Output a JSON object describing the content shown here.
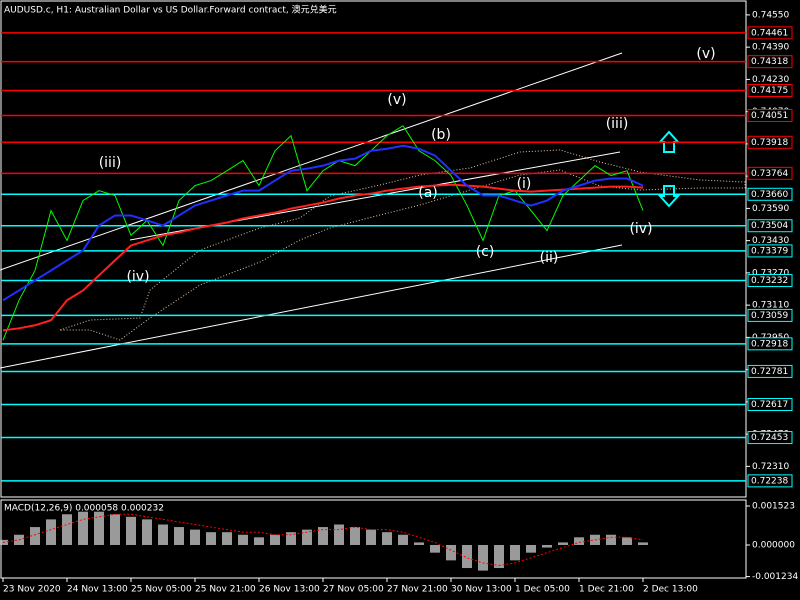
{
  "chart_data": [
    {
      "type": "line",
      "title": "AUDUSD.c, H1:  Australian Dollar vs US Dollar.Forward contract, 澳元兑美元",
      "categories": [
        "23 Nov 2020",
        null,
        null,
        null,
        "24 Nov 13:00",
        null,
        null,
        null,
        "25 Nov 05:00",
        null,
        null,
        null,
        "25 Nov 21:00",
        null,
        null,
        null,
        "26 Nov 13:00",
        null,
        null,
        null,
        "27 Nov 05:00",
        null,
        null,
        null,
        "27 Nov 21:00",
        null,
        null,
        null,
        "30 Nov 13:00",
        null,
        null,
        null,
        "1 Dec 05:00",
        null,
        null,
        null,
        "1 Dec 21:00",
        null,
        null,
        null,
        "2 Dec 13:00"
      ],
      "series": [
        {
          "color": "#00ff00",
          "values": [
            0.72936,
            0.73134,
            0.73282,
            0.73579,
            0.73431,
            0.73629,
            0.73678,
            0.73654,
            0.73456,
            0.7353,
            0.73406,
            0.73629,
            0.73703,
            0.73728,
            0.73777,
            0.73827,
            0.73703,
            0.73876,
            0.73951,
            0.73678,
            0.73777,
            0.73827,
            0.73802,
            0.73876,
            0.73951,
            0.74,
            0.73876,
            0.73827,
            0.73753,
            0.73604,
            0.73431,
            0.73654,
            0.73678,
            0.73579,
            0.7348,
            0.73654,
            0.73728,
            0.73802,
            0.73753,
            0.73777,
            0.73579
          ]
        },
        {
          "color": "#ff2020",
          "values": [
            0.72985,
            0.72995,
            0.7301,
            0.73035,
            0.73134,
            0.73183,
            0.73258,
            0.73332,
            0.73406,
            0.73431,
            0.73456,
            0.7347,
            0.7349,
            0.73505,
            0.7352,
            0.7354,
            0.73555,
            0.73569,
            0.73589,
            0.73604,
            0.73619,
            0.73639,
            0.73654,
            0.73663,
            0.73678,
            0.73688,
            0.73698,
            0.73703,
            0.73708,
            0.73703,
            0.73698,
            0.73688,
            0.73678,
            0.73673,
            0.73678,
            0.73683,
            0.73688,
            0.73693,
            0.73698,
            0.73698,
            0.73693
          ]
        },
        {
          "color": "#2030ff",
          "values": [
            0.73134,
            0.73183,
            0.73233,
            0.73282,
            0.73332,
            0.73381,
            0.73505,
            0.73555,
            0.73555,
            0.7353,
            0.73505,
            0.73555,
            0.73604,
            0.73629,
            0.73654,
            0.73678,
            0.73678,
            0.73728,
            0.73777,
            0.73787,
            0.73802,
            0.73827,
            0.73837,
            0.73876,
            0.73886,
            0.73901,
            0.73886,
            0.73852,
            0.73777,
            0.73703,
            0.73654,
            0.73654,
            0.73629,
            0.73604,
            0.73629,
            0.73678,
            0.73703,
            0.73728,
            0.73738,
            0.73738,
            0.73703
          ]
        }
      ],
      "ylim": [
        0.72158,
        0.74619
      ],
      "yticks": [
        {
          "value": 0.7455,
          "label": "0.74550"
        },
        {
          "value": 0.7439,
          "label": "0.74390"
        },
        {
          "value": 0.7423,
          "label": "0.74230"
        },
        {
          "value": 0.7407,
          "label": "0.74070"
        },
        {
          "value": 0.7391,
          "label": "0.73910"
        },
        {
          "value": 0.7375,
          "label": "0.73750"
        },
        {
          "value": 0.7359,
          "label": "0.73590"
        },
        {
          "value": 0.7343,
          "label": "0.73430"
        },
        {
          "value": 0.7327,
          "label": "0.73270"
        },
        {
          "value": 0.7311,
          "label": "0.73110"
        },
        {
          "value": 0.7295,
          "label": "0.72950"
        },
        {
          "value": 0.7279,
          "label": "0.72790"
        },
        {
          "value": 0.7263,
          "label": "0.72630"
        },
        {
          "value": 0.7247,
          "label": "0.72470"
        },
        {
          "value": 0.7231,
          "label": "0.72310"
        }
      ],
      "levels": [
        {
          "value": 0.74461,
          "label": "0.74461",
          "color": "#ff0000"
        },
        {
          "value": 0.74318,
          "label": "0.74318",
          "color": "#ff0000"
        },
        {
          "value": 0.74175,
          "label": "0.74175",
          "color": "#ff0000"
        },
        {
          "value": 0.74051,
          "label": "0.74051",
          "color": "#ff0000"
        },
        {
          "value": 0.73918,
          "label": "0.73918",
          "color": "#ff0000"
        },
        {
          "value": 0.73764,
          "label": "0.73764",
          "color": "#ff0000"
        },
        {
          "value": 0.7366,
          "label": "0.73660",
          "color": "#00ffff"
        },
        {
          "value": 0.73504,
          "label": "0.73504",
          "color": "#00ffff"
        },
        {
          "value": 0.73379,
          "label": "0.73379",
          "color": "#00ffff"
        },
        {
          "value": 0.73232,
          "label": "0.73232",
          "color": "#00ffff"
        },
        {
          "value": 0.73059,
          "label": "0.73059",
          "color": "#00ffff"
        },
        {
          "value": 0.72918,
          "label": "0.72918",
          "color": "#00ffff"
        },
        {
          "value": 0.72781,
          "label": "0.72781",
          "color": "#00ffff"
        },
        {
          "value": 0.72617,
          "label": "0.72617",
          "color": "#00ffff"
        },
        {
          "value": 0.72453,
          "label": "0.72453",
          "color": "#00ffff"
        },
        {
          "value": 0.72238,
          "label": "0.72238",
          "color": "#00ffff"
        }
      ],
      "annotations": [
        {
          "text": "(v)",
          "color": "#ffffff"
        },
        {
          "text": "(v)",
          "color": "#ffffff"
        },
        {
          "text": "(iii)",
          "color": "#ffffff"
        },
        {
          "text": "(iv)",
          "color": "#ffffff"
        },
        {
          "text": "(b)",
          "color": "#ffa500"
        },
        {
          "text": "(a)",
          "color": "#ffa500"
        },
        {
          "text": "(c)",
          "color": "#ffa500"
        },
        {
          "text": "(i)",
          "color": "#ffffff"
        },
        {
          "text": "(ii)",
          "color": "#ffffff"
        },
        {
          "text": "(iii)",
          "color": "#ffffff"
        },
        {
          "text": "(iv)",
          "color": "#ffffff"
        }
      ]
    },
    {
      "type": "bar",
      "label": "MACD(12,26,9) 0.000058 0.000232",
      "histogram": {
        "color": "#c0c0c0",
        "values": [
          0.0002,
          0.0004,
          0.0007,
          0.001,
          0.0012,
          0.0013,
          0.0013,
          0.0012,
          0.0011,
          0.001,
          0.0008,
          0.0007,
          0.0006,
          0.0005,
          0.0005,
          0.0004,
          0.0003,
          0.0004,
          0.0005,
          0.0006,
          0.0007,
          0.0008,
          0.0007,
          0.0006,
          0.0005,
          0.0004,
          0.0001,
          -0.0003,
          -0.0006,
          -0.0009,
          -0.001,
          -0.0009,
          -0.0006,
          -0.0003,
          -0.0001,
          0.0001,
          0.0003,
          0.0004,
          0.0004,
          0.0003,
          0.0001
        ]
      },
      "signal": {
        "color": "#ff0000",
        "values": [
          0.0001,
          0.0002,
          0.0004,
          0.0006,
          0.0008,
          0.001,
          0.0011,
          0.0012,
          0.0012,
          0.0011,
          0.001,
          0.0009,
          0.0008,
          0.0007,
          0.0006,
          0.0005,
          0.0005,
          0.0004,
          0.0004,
          0.0005,
          0.0006,
          0.0006,
          0.0007,
          0.0006,
          0.0006,
          0.0005,
          0.0003,
          0.0001,
          -0.0002,
          -0.0005,
          -0.0007,
          -0.0008,
          -0.0007,
          -0.0005,
          -0.0003,
          -0.0001,
          0.0001,
          0.0002,
          0.0003,
          0.0003,
          0.0002
        ]
      },
      "ylim": [
        -0.001289,
        0.001757
      ],
      "yticks": [
        {
          "value": 0.001523,
          "label": "0.001523"
        },
        {
          "value": 0,
          "label": "0.000000"
        },
        {
          "value": -0.001234,
          "label": "-0.001234"
        }
      ]
    }
  ]
}
